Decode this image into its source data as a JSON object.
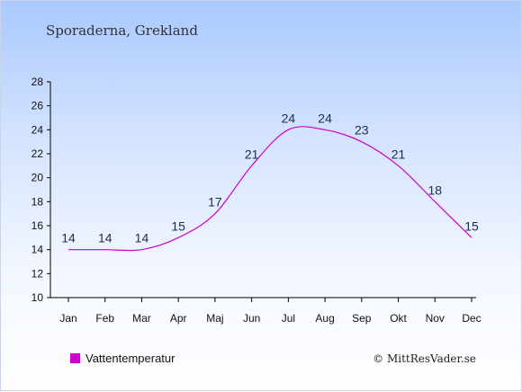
{
  "chart_data": {
    "type": "line",
    "title": "Sporaderna, Grekland",
    "categories": [
      "Jan",
      "Feb",
      "Mar",
      "Apr",
      "Maj",
      "Jun",
      "Jul",
      "Aug",
      "Sep",
      "Okt",
      "Nov",
      "Dec"
    ],
    "series": [
      {
        "name": "Vattentemperatur",
        "color": "#cc00cc",
        "values": [
          14,
          14,
          14,
          15,
          17,
          21,
          24,
          24,
          23,
          21,
          18,
          15
        ]
      }
    ],
    "ylim": [
      10,
      28
    ],
    "yticks": [
      10,
      12,
      14,
      16,
      18,
      20,
      22,
      24,
      26,
      28
    ],
    "grid": false,
    "legend_position": "bottom-left",
    "credit": "© MittResVader.se"
  }
}
